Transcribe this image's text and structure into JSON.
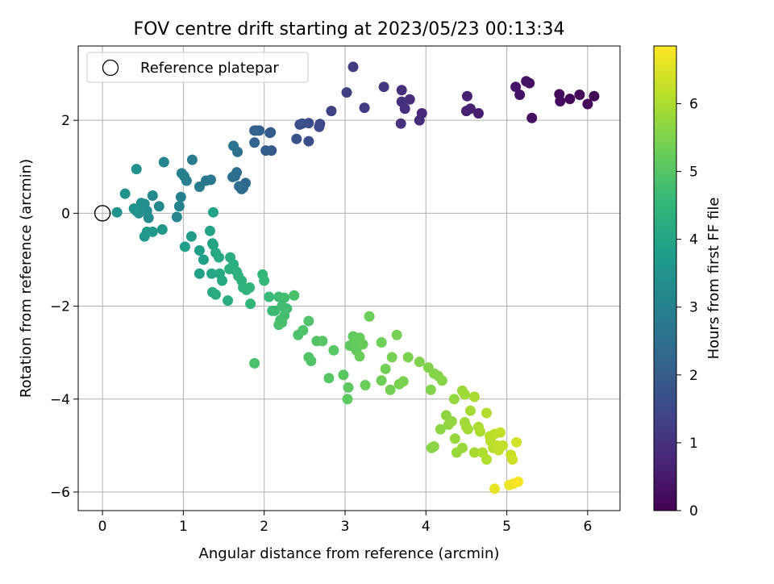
{
  "chart_data": {
    "type": "scatter",
    "title": "FOV centre drift starting at 2023/05/23 00:13:34",
    "xlabel": "Angular distance from reference (arcmin)",
    "ylabel": "Rotation from reference (arcmin)",
    "xlim": [
      -0.3,
      6.4
    ],
    "ylim": [
      -6.4,
      3.6
    ],
    "xticks": [
      0,
      1,
      2,
      3,
      4,
      5,
      6
    ],
    "yticks": [
      -6,
      -4,
      -2,
      0,
      2
    ],
    "grid": true,
    "legend": {
      "placement": "top-left",
      "entries": [
        "Reference platepar"
      ]
    },
    "reference_point": {
      "x": 0,
      "y": 0
    },
    "colorbar": {
      "label": "Hours from first FF file",
      "colormap": "viridis",
      "range": [
        0,
        6.85
      ],
      "ticks": [
        0,
        1,
        2,
        3,
        4,
        5,
        6
      ]
    },
    "series": [
      {
        "points": [
          [
            6.08,
            2.52,
            0.05
          ],
          [
            6.0,
            2.35,
            0.1
          ],
          [
            5.9,
            2.55,
            0.12
          ],
          [
            5.78,
            2.46,
            0.15
          ],
          [
            5.66,
            2.41,
            0.18
          ],
          [
            5.65,
            2.56,
            0.2
          ],
          [
            5.31,
            2.05,
            0.3
          ],
          [
            5.28,
            2.8,
            0.32
          ],
          [
            5.24,
            2.84,
            0.35
          ],
          [
            5.16,
            2.55,
            0.38
          ],
          [
            5.11,
            2.72,
            0.4
          ],
          [
            4.65,
            2.15,
            0.55
          ],
          [
            4.55,
            2.25,
            0.6
          ],
          [
            4.51,
            2.52,
            0.62
          ],
          [
            4.5,
            2.2,
            0.65
          ],
          [
            3.95,
            2.15,
            0.8
          ],
          [
            3.92,
            2.0,
            0.85
          ],
          [
            3.8,
            2.45,
            0.9
          ],
          [
            3.74,
            2.25,
            0.92
          ],
          [
            3.7,
            2.65,
            0.95
          ],
          [
            3.7,
            2.4,
            1.0
          ],
          [
            3.69,
            1.93,
            1.02
          ],
          [
            3.48,
            2.72,
            1.1
          ],
          [
            3.24,
            2.27,
            1.2
          ],
          [
            3.1,
            3.15,
            1.25
          ],
          [
            3.02,
            2.6,
            1.3
          ],
          [
            2.83,
            2.2,
            1.4
          ],
          [
            2.69,
            1.92,
            1.5
          ],
          [
            2.68,
            1.86,
            1.55
          ],
          [
            2.55,
            1.94,
            1.6
          ],
          [
            2.55,
            1.55,
            1.65
          ],
          [
            2.47,
            1.93,
            1.7
          ],
          [
            2.44,
            1.91,
            1.72
          ],
          [
            2.4,
            1.6,
            1.75
          ],
          [
            2.09,
            1.35,
            1.9
          ],
          [
            2.08,
            1.74,
            1.95
          ],
          [
            2.07,
            1.73,
            2.0
          ],
          [
            2.02,
            1.35,
            2.05
          ],
          [
            1.94,
            1.78,
            2.1
          ],
          [
            1.9,
            1.78,
            2.12
          ],
          [
            1.88,
            1.78,
            2.15
          ],
          [
            1.88,
            1.52,
            2.2
          ],
          [
            1.77,
            0.65,
            2.3
          ],
          [
            1.74,
            0.55,
            2.35
          ],
          [
            1.72,
            0.52,
            2.38
          ],
          [
            1.69,
            0.58,
            2.4
          ],
          [
            1.66,
            0.88,
            2.45
          ],
          [
            1.64,
            0.8,
            2.48
          ],
          [
            1.61,
            0.78,
            2.5
          ],
          [
            1.67,
            1.32,
            2.55
          ],
          [
            1.62,
            1.45,
            2.6
          ],
          [
            1.34,
            0.72,
            2.7
          ],
          [
            1.28,
            0.7,
            2.75
          ],
          [
            1.2,
            0.57,
            2.8
          ],
          [
            1.11,
            1.15,
            2.85
          ],
          [
            1.04,
            0.7,
            2.9
          ],
          [
            1.01,
            0.8,
            2.95
          ],
          [
            0.98,
            0.86,
            3.0
          ],
          [
            0.97,
            0.35,
            3.05
          ],
          [
            0.95,
            0.15,
            3.08
          ],
          [
            0.92,
            -0.08,
            3.1
          ],
          [
            0.76,
            1.1,
            3.15
          ],
          [
            0.7,
            0.15,
            3.2
          ],
          [
            0.62,
            0.38,
            3.25
          ],
          [
            0.57,
            -0.1,
            3.3
          ],
          [
            0.55,
            0.05,
            3.32
          ],
          [
            0.52,
            0.2,
            3.35
          ],
          [
            0.5,
            0.15,
            3.38
          ],
          [
            0.48,
            0.22,
            3.4
          ],
          [
            0.45,
            0.0,
            3.42
          ],
          [
            0.42,
            0.05,
            3.45
          ],
          [
            0.42,
            0.95,
            3.48
          ],
          [
            0.28,
            0.42,
            3.5
          ],
          [
            0.18,
            0.02,
            3.52
          ],
          [
            0.39,
            0.1,
            3.55
          ],
          [
            0.74,
            -0.35,
            3.6
          ],
          [
            0.62,
            -0.4,
            3.62
          ],
          [
            0.55,
            -0.4,
            3.65
          ],
          [
            0.52,
            -0.5,
            3.68
          ],
          [
            1.1,
            -0.5,
            3.75
          ],
          [
            1.02,
            -0.72,
            3.8
          ],
          [
            1.2,
            -0.8,
            3.85
          ],
          [
            1.25,
            -1.0,
            3.88
          ],
          [
            1.2,
            -1.3,
            3.9
          ],
          [
            1.37,
            0.02,
            3.95
          ],
          [
            1.33,
            -0.38,
            3.98
          ],
          [
            1.36,
            -0.65,
            4.0
          ],
          [
            1.37,
            -0.68,
            4.02
          ],
          [
            1.35,
            -1.3,
            4.05
          ],
          [
            1.4,
            -0.85,
            4.08
          ],
          [
            1.44,
            -0.95,
            4.1
          ],
          [
            1.45,
            -1.3,
            4.12
          ],
          [
            1.48,
            -1.45,
            4.15
          ],
          [
            1.36,
            -1.7,
            4.18
          ],
          [
            1.4,
            -1.75,
            4.2
          ],
          [
            1.55,
            -1.88,
            4.22
          ],
          [
            1.58,
            -0.95,
            4.25
          ],
          [
            1.57,
            -1.2,
            4.28
          ],
          [
            1.62,
            -1.1,
            4.3
          ],
          [
            1.66,
            -1.26,
            4.32
          ],
          [
            1.68,
            -1.35,
            4.35
          ],
          [
            1.72,
            -1.45,
            4.38
          ],
          [
            1.74,
            -1.6,
            4.4
          ],
          [
            1.78,
            -1.65,
            4.42
          ],
          [
            1.82,
            -1.6,
            4.45
          ],
          [
            1.83,
            -1.95,
            4.48
          ],
          [
            1.98,
            -1.32,
            4.55
          ],
          [
            2.0,
            -1.45,
            4.6
          ],
          [
            2.06,
            -1.8,
            4.62
          ],
          [
            2.1,
            -2.1,
            4.65
          ],
          [
            2.13,
            -2.1,
            4.68
          ],
          [
            2.18,
            -1.8,
            4.7
          ],
          [
            2.22,
            -2.0,
            4.72
          ],
          [
            2.25,
            -1.82,
            4.74
          ],
          [
            2.28,
            -2.05,
            4.76
          ],
          [
            2.25,
            -2.2,
            4.78
          ],
          [
            2.2,
            -2.3,
            4.8
          ],
          [
            2.18,
            -2.4,
            4.82
          ],
          [
            2.22,
            -2.35,
            4.84
          ],
          [
            2.37,
            -1.77,
            4.86
          ],
          [
            1.88,
            -3.23,
            4.88
          ],
          [
            2.42,
            -2.62,
            4.9
          ],
          [
            2.48,
            -2.52,
            4.92
          ],
          [
            2.55,
            -2.32,
            4.94
          ],
          [
            2.55,
            -3.1,
            4.96
          ],
          [
            2.58,
            -3.18,
            4.98
          ],
          [
            2.65,
            -2.75,
            5.0
          ],
          [
            2.72,
            -2.75,
            5.02
          ],
          [
            2.8,
            -3.55,
            5.04
          ],
          [
            2.86,
            -2.95,
            5.06
          ],
          [
            2.98,
            -3.48,
            5.08
          ],
          [
            3.04,
            -3.75,
            5.1
          ],
          [
            3.03,
            -4.0,
            5.12
          ],
          [
            3.06,
            -2.85,
            5.14
          ],
          [
            3.1,
            -2.65,
            5.16
          ],
          [
            3.12,
            -2.75,
            5.18
          ],
          [
            3.14,
            -2.95,
            5.2
          ],
          [
            3.18,
            -2.68,
            5.22
          ],
          [
            3.22,
            -2.82,
            5.24
          ],
          [
            3.18,
            -3.08,
            5.26
          ],
          [
            3.25,
            -3.7,
            5.28
          ],
          [
            3.3,
            -2.22,
            5.3
          ],
          [
            3.45,
            -2.78,
            5.32
          ],
          [
            3.45,
            -3.6,
            5.34
          ],
          [
            3.5,
            -3.35,
            5.36
          ],
          [
            3.56,
            -3.8,
            5.38
          ],
          [
            3.58,
            -3.1,
            5.4
          ],
          [
            3.64,
            -2.62,
            5.42
          ],
          [
            3.67,
            -3.68,
            5.44
          ],
          [
            3.72,
            -3.62,
            5.46
          ],
          [
            3.78,
            -3.1,
            5.48
          ],
          [
            3.92,
            -3.2,
            5.5
          ],
          [
            4.03,
            -3.32,
            5.52
          ],
          [
            4.06,
            -3.8,
            5.54
          ],
          [
            4.1,
            -3.45,
            5.56
          ],
          [
            4.15,
            -3.5,
            5.58
          ],
          [
            4.2,
            -3.6,
            5.6
          ],
          [
            4.07,
            -5.05,
            5.62
          ],
          [
            4.1,
            -5.02,
            5.64
          ],
          [
            4.18,
            -4.65,
            5.66
          ],
          [
            4.25,
            -4.35,
            5.68
          ],
          [
            4.28,
            -4.55,
            5.7
          ],
          [
            4.32,
            -4.48,
            5.72
          ],
          [
            4.35,
            -4.0,
            5.74
          ],
          [
            4.36,
            -4.85,
            5.76
          ],
          [
            4.38,
            -5.15,
            5.78
          ],
          [
            4.45,
            -5.05,
            5.8
          ],
          [
            4.45,
            -3.82,
            5.82
          ],
          [
            4.48,
            -3.9,
            5.84
          ],
          [
            4.48,
            -4.5,
            5.86
          ],
          [
            4.5,
            -4.6,
            5.88
          ],
          [
            4.52,
            -4.65,
            5.9
          ],
          [
            4.55,
            -4.25,
            5.92
          ],
          [
            4.6,
            -5.15,
            5.94
          ],
          [
            4.6,
            -3.95,
            5.96
          ],
          [
            4.65,
            -4.6,
            5.98
          ],
          [
            4.67,
            -4.7,
            6.0
          ],
          [
            4.7,
            -5.15,
            6.02
          ],
          [
            4.75,
            -5.3,
            6.04
          ],
          [
            4.75,
            -4.3,
            6.06
          ],
          [
            4.79,
            -4.8,
            6.1
          ],
          [
            4.8,
            -4.9,
            6.12
          ],
          [
            4.83,
            -5.05,
            6.14
          ],
          [
            4.85,
            -4.75,
            6.16
          ],
          [
            4.88,
            -5.0,
            6.18
          ],
          [
            4.9,
            -5.1,
            6.2
          ],
          [
            4.92,
            -4.72,
            6.22
          ],
          [
            4.95,
            -5.0,
            6.24
          ],
          [
            5.05,
            -5.2,
            6.3
          ],
          [
            5.07,
            -5.3,
            6.35
          ],
          [
            5.12,
            -4.93,
            6.4
          ],
          [
            4.85,
            -5.93,
            6.6
          ],
          [
            5.03,
            -5.85,
            6.65
          ],
          [
            5.08,
            -5.82,
            6.7
          ],
          [
            5.14,
            -5.78,
            6.8
          ]
        ]
      }
    ]
  }
}
